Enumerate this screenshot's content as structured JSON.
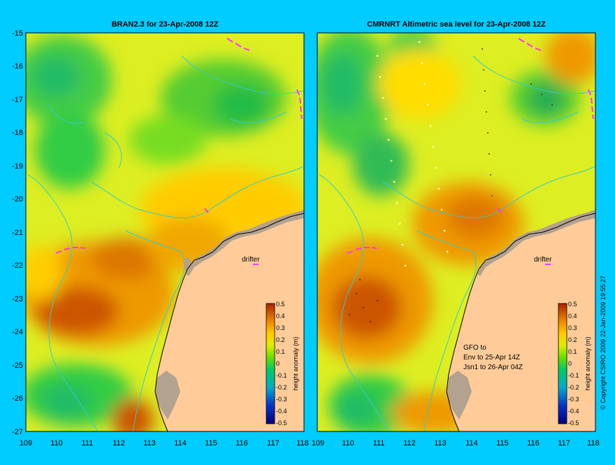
{
  "panels": [
    {
      "title": "BRAN2.3 for 23-Apr-2008 12Z",
      "drifter_label": "drifter",
      "note_lines": [],
      "scalebar": {
        "ticks": [
          "0.5",
          "0.4",
          "0.3",
          "0.2",
          "0.1",
          "0",
          "-0.1",
          "-0.2",
          "-0.3",
          "-0.4",
          "-0.5"
        ],
        "label": "height anomaly (m)"
      }
    },
    {
      "title": "CMRNRT Altimetric sea level  for 23-Apr-2008 12Z",
      "drifter_label": "drifter",
      "note_lines": [
        "GFO to",
        "Env to 25-Apr 14Z",
        "Jsn1 to 26-Apr 04Z"
      ],
      "scalebar": {
        "ticks": [
          "0.5",
          "0.4",
          "0.3",
          "0.2",
          "0.1",
          "0",
          "-0.1",
          "-0.2",
          "-0.3",
          "-0.4",
          "-0.5"
        ],
        "label": "height anomaly (m)"
      }
    }
  ],
  "y_axis_labels": [
    "-15",
    "-16",
    "-17",
    "-18",
    "-19",
    "-20",
    "-21",
    "-22",
    "-23",
    "-24",
    "-25",
    "-26",
    "-27"
  ],
  "x_axis_labels": [
    "109",
    "110",
    "111",
    "112",
    "113",
    "114",
    "115",
    "116",
    "117",
    "118"
  ],
  "copyright": "© Copyright CSIRO 2009   22-Jan-2009 19:55:27",
  "colors": {
    "background": "#00ccff",
    "land": "#ffcc99",
    "shelf_grey": "#b3a28f",
    "coast_contour": "#33cccc",
    "drifter_track": "#ff33ff"
  }
}
